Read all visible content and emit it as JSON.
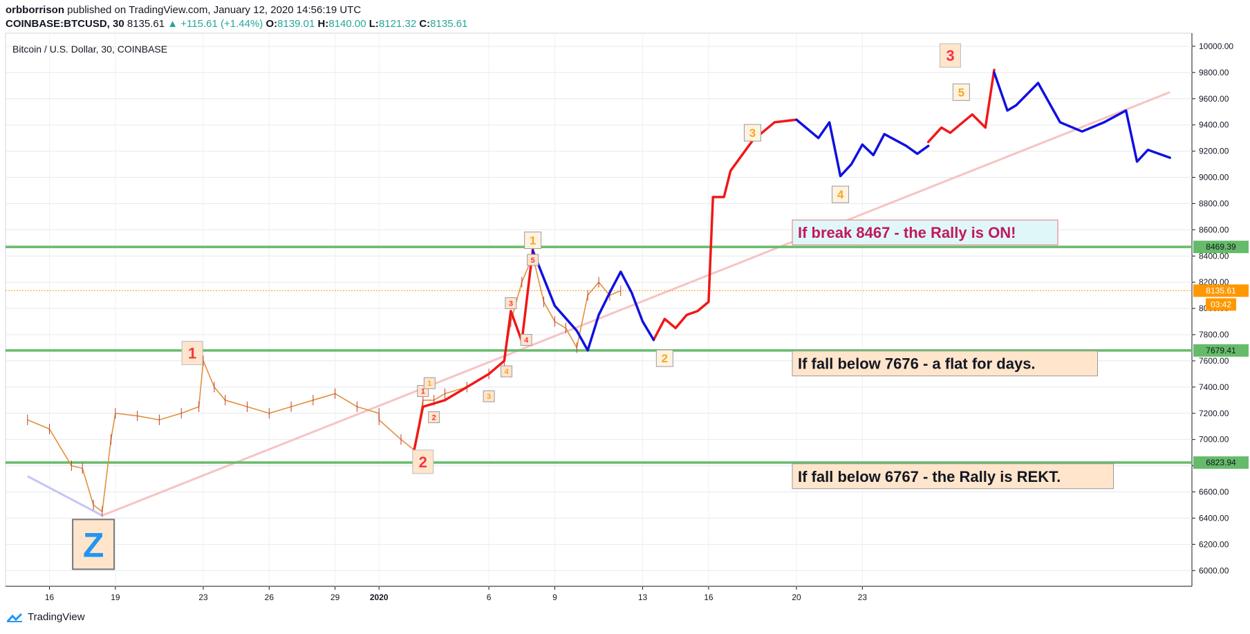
{
  "header": {
    "author": "orbborrison",
    "published": "published on TradingView.com, January 12, 2020 14:56:19 UTC",
    "symbol": "COINBASE:BTCUSD, 30",
    "last": "8135.61",
    "change_arrow": "▲",
    "change": "+115.61 (+1.44%)",
    "o_label": "O:",
    "o": "8139.01",
    "h_label": "H:",
    "h": "8140.00",
    "l_label": "L:",
    "l": "8121.32",
    "c_label": "C:",
    "c": "8135.61"
  },
  "footer": {
    "brand": "TradingView",
    "logo_icon": "tradingview-cloud-icon"
  },
  "colors": {
    "up": "#26a69a",
    "red": "#f23645",
    "blue": "#1010e0",
    "green": "#66bb6a",
    "orange": "#ff9800",
    "label_bg": "#ffe5cc",
    "magenta": "#c2185b"
  },
  "chart_data": {
    "type": "line",
    "title": "Bitcoin / U.S. Dollar, 30, COINBASE",
    "xlabel": "",
    "ylabel": "",
    "x_ticks": [
      "16",
      "19",
      "23",
      "26",
      "29",
      "2020",
      "6",
      "9",
      "13",
      "16",
      "20",
      "23"
    ],
    "x_range": [
      "Dec 15 2019",
      "Feb 6 2020"
    ],
    "y_ticks": [
      6000,
      6200,
      6400,
      6600,
      6800,
      7000,
      7200,
      7400,
      7600,
      7800,
      8000,
      8200,
      8400,
      8600,
      8800,
      9000,
      9200,
      9400,
      9600,
      9800,
      10000
    ],
    "ylim": [
      5880,
      10100
    ],
    "grid": true,
    "price_levels": [
      {
        "value": 8469.39,
        "label": "8469.39",
        "color": "green"
      },
      {
        "value": 7679.41,
        "label": "7679.41",
        "color": "green"
      },
      {
        "value": 6823.94,
        "label": "6823.94",
        "color": "green"
      }
    ],
    "current_price": {
      "value": 8135.61,
      "label": "8135.61",
      "timer": "03:42"
    },
    "price_series": {
      "name": "BTCUSD 30m",
      "x": [
        "Dec 15",
        "Dec 16",
        "Dec 17",
        "Dec 17.5",
        "Dec 18",
        "Dec 18.4",
        "Dec 18.8",
        "Dec 19",
        "Dec 20",
        "Dec 21",
        "Dec 22",
        "Dec 22.8",
        "Dec 23",
        "Dec 23.5",
        "Dec 24",
        "Dec 25",
        "Dec 26",
        "Dec 27",
        "Dec 28",
        "Dec 29",
        "Dec 30",
        "Dec 31",
        "Jan 1",
        "Jan 2",
        "Jan 2.6",
        "Jan 3",
        "Jan 3.5",
        "Jan 4",
        "Jan 5",
        "Jan 6",
        "Jan 6.7",
        "Jan 7",
        "Jan 7.5",
        "Jan 8",
        "Jan 8.5",
        "Jan 9",
        "Jan 9.5",
        "Jan 10",
        "Jan 10.5",
        "Jan 11",
        "Jan 11.5",
        "Jan 12"
      ],
      "y": [
        7150,
        7080,
        6800,
        6780,
        6500,
        6450,
        7000,
        7200,
        7180,
        7150,
        7200,
        7250,
        7600,
        7400,
        7300,
        7250,
        7200,
        7250,
        7300,
        7350,
        7250,
        7200,
        7150,
        7000,
        6920,
        7300,
        7300,
        7350,
        7400,
        7500,
        7600,
        7900,
        8200,
        8400,
        8050,
        7900,
        7850,
        7700,
        8100,
        8200,
        8100,
        8135
      ]
    },
    "trendlines": [
      {
        "name": "lower-trendline",
        "color": "pink",
        "points": [
          [
            "Dec 18.4",
            6420
          ],
          [
            "Feb 6",
            9650
          ]
        ]
      },
      {
        "name": "z-decline",
        "color": "lavender",
        "points": [
          [
            "Dec 15",
            6720
          ],
          [
            "Dec 18.4",
            6420
          ]
        ]
      }
    ],
    "projection_red": [
      {
        "x": [
          "Jan 2.6",
          "Jan 3",
          "Jan 4",
          "Jan 5",
          "Jan 6",
          "Jan 6.7",
          "Jan 7",
          "Jan 7.5"
        ],
        "y": [
          6920,
          7250,
          7300,
          7400,
          7500,
          7600,
          7980,
          7750
        ]
      },
      {
        "x": [
          "Jan 7.5",
          "Jan 8"
        ],
        "y": [
          7750,
          8450
        ]
      },
      {
        "x": [
          "Jan 13.5",
          "Jan 14",
          "Jan 14.5",
          "Jan 15",
          "Jan 15.5",
          "Jan 16",
          "Jan 16.2",
          "Jan 16.7",
          "Jan 17",
          "Jan 18",
          "Jan 19",
          "Jan 20"
        ],
        "y": [
          7760,
          7920,
          7850,
          7950,
          7980,
          8050,
          8850,
          8850,
          9050,
          9280,
          9420,
          9440
        ]
      },
      {
        "x": [
          "Jan 26",
          "Jan 26.6",
          "Jan 27",
          "Jan 28",
          "Jan 28.6",
          "Jan 29"
        ],
        "y": [
          9270,
          9380,
          9340,
          9480,
          9380,
          9820
        ]
      }
    ],
    "projection_blue": [
      {
        "x": [
          "Jan 8",
          "Jan 9",
          "Jan 10",
          "Jan 10.5",
          "Jan 11",
          "Jan 11.5",
          "Jan 12",
          "Jan 12.5",
          "Jan 13",
          "Jan 13.5"
        ],
        "y": [
          8440,
          8020,
          7830,
          7680,
          7950,
          8120,
          8280,
          8120,
          7900,
          7760
        ]
      },
      {
        "x": [
          "Jan 20",
          "Jan 21",
          "Jan 21.5",
          "Jan 22",
          "Jan 22.5",
          "Jan 23",
          "Jan 23.5",
          "Jan 24",
          "Jan 25",
          "Jan 25.5",
          "Jan 26"
        ],
        "y": [
          9440,
          9300,
          9420,
          9010,
          9100,
          9250,
          9170,
          9330,
          9240,
          9180,
          9240
        ]
      },
      {
        "x": [
          "Jan 29",
          "Jan 29.6",
          "Jan 30",
          "Jan 31",
          "Feb 1",
          "Feb 2",
          "Feb 3",
          "Feb 4",
          "Feb 4.5",
          "Feb 5",
          "Feb 6"
        ],
        "y": [
          9800,
          9510,
          9550,
          9720,
          9420,
          9350,
          9420,
          9510,
          9120,
          9210,
          9150
        ]
      }
    ],
    "wave_labels": [
      {
        "text": "Z",
        "x": "Dec 18",
        "y": 6200,
        "style": "big-blue"
      },
      {
        "text": "1",
        "x": "Dec 22.5",
        "y": 7660,
        "style": "red"
      },
      {
        "text": "2",
        "x": "Jan 3",
        "y": 6830,
        "style": "red"
      },
      {
        "text": "1",
        "x": "Jan 8",
        "y": 8520,
        "style": "orange"
      },
      {
        "text": "2",
        "x": "Jan 14",
        "y": 7620,
        "style": "orange"
      },
      {
        "text": "3",
        "x": "Jan 18",
        "y": 9340,
        "style": "orange"
      },
      {
        "text": "4",
        "x": "Jan 22",
        "y": 8870,
        "style": "orange"
      },
      {
        "text": "5",
        "x": "Jan 27.5",
        "y": 9650,
        "style": "orange"
      },
      {
        "text": "3",
        "x": "Jan 27",
        "y": 9930,
        "style": "red-big"
      },
      {
        "text": "1",
        "x": "Jan 3",
        "y": 7370,
        "style": "small-red"
      },
      {
        "text": "1",
        "x": "Jan 3.3",
        "y": 7430,
        "style": "small-orange"
      },
      {
        "text": "2",
        "x": "Jan 3.5",
        "y": 7170,
        "style": "small-red"
      },
      {
        "text": "3",
        "x": "Jan 6",
        "y": 7330,
        "style": "small-orange"
      },
      {
        "text": "4",
        "x": "Jan 6.8",
        "y": 7520,
        "style": "small-orange"
      },
      {
        "text": "3",
        "x": "Jan 7",
        "y": 8040,
        "style": "small-red"
      },
      {
        "text": "4",
        "x": "Jan 7.7",
        "y": 7760,
        "style": "small-red"
      },
      {
        "text": "5",
        "x": "Jan 8",
        "y": 8370,
        "style": "small-red"
      }
    ],
    "annotations": [
      {
        "text": "If break 8467 - the Rally is ON!",
        "x": "Jan 20",
        "y": 8580,
        "style": "cyan-box"
      },
      {
        "text": "If fall below 7676 - a flat for days.",
        "x": "Jan 20",
        "y": 7580,
        "style": "peach-box"
      },
      {
        "text": "If fall below 6767 - the Rally is REKT.",
        "x": "Jan 20",
        "y": 6720,
        "style": "peach-box"
      }
    ]
  }
}
